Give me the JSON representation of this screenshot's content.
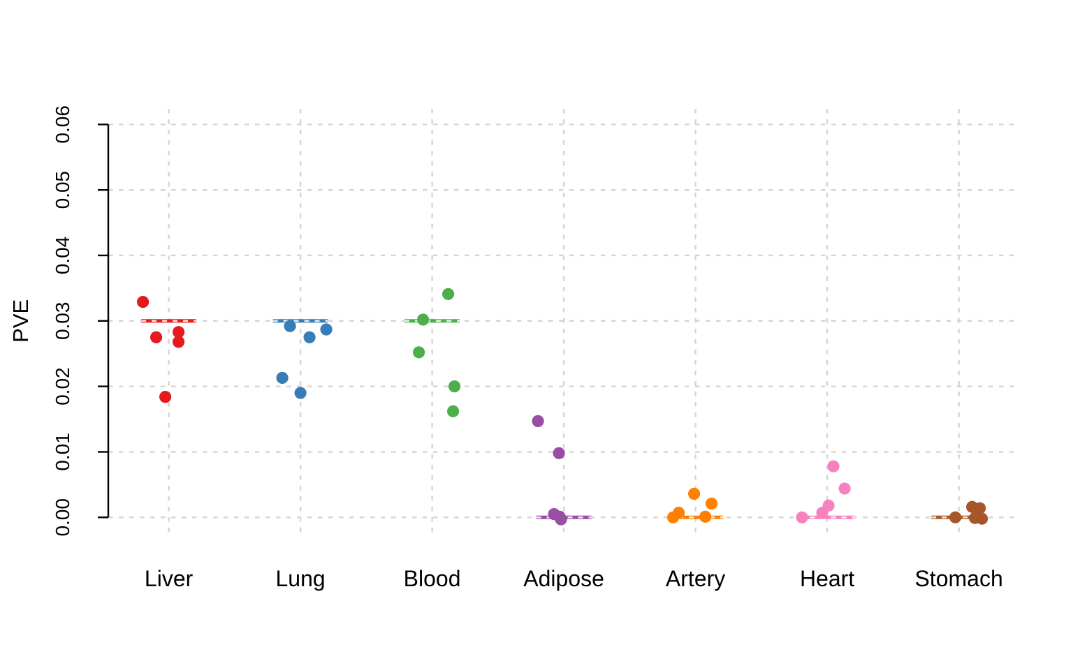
{
  "chart_data": {
    "type": "scatter",
    "subtype": "strip-chart-with-median-lines",
    "title": "",
    "xlabel": "",
    "ylabel": "PVE",
    "ylim": [
      0,
      0.06
    ],
    "yticks": [
      0.0,
      0.01,
      0.02,
      0.03,
      0.04,
      0.05,
      0.06
    ],
    "ytick_labels": [
      "0.00",
      "0.01",
      "0.02",
      "0.03",
      "0.04",
      "0.05",
      "0.06"
    ],
    "grid": "dashed gray gridlines at every y tick and every category",
    "legend": "none",
    "categories": [
      "Liver",
      "Lung",
      "Blood",
      "Adipose",
      "Artery",
      "Heart",
      "Stomach"
    ],
    "series": [
      {
        "name": "Liver",
        "color": "#E41A1C",
        "line_value": 0.03,
        "points": [
          {
            "pve": 0.0329,
            "dx": -37
          },
          {
            "pve": 0.0275,
            "dx": -18
          },
          {
            "pve": 0.0283,
            "dx": 14
          },
          {
            "pve": 0.0268,
            "dx": 14
          },
          {
            "pve": 0.0184,
            "dx": -5
          }
        ]
      },
      {
        "name": "Lung",
        "color": "#377EB8",
        "line_value": 0.03,
        "points": [
          {
            "pve": 0.0292,
            "dx": -15
          },
          {
            "pve": 0.0275,
            "dx": 13
          },
          {
            "pve": 0.0287,
            "dx": 37
          },
          {
            "pve": 0.0213,
            "dx": -26
          },
          {
            "pve": 0.019,
            "dx": 0
          }
        ]
      },
      {
        "name": "Blood",
        "color": "#4DAF4A",
        "line_value": 0.03,
        "points": [
          {
            "pve": 0.0341,
            "dx": 23
          },
          {
            "pve": 0.0302,
            "dx": -13
          },
          {
            "pve": 0.0252,
            "dx": -19
          },
          {
            "pve": 0.02,
            "dx": 32
          },
          {
            "pve": 0.0162,
            "dx": 30
          }
        ]
      },
      {
        "name": "Adipose",
        "color": "#984EA3",
        "line_value": 0.0,
        "points": [
          {
            "pve": 0.0147,
            "dx": -37
          },
          {
            "pve": 0.0098,
            "dx": -7
          },
          {
            "pve": 0.0005,
            "dx": -14
          },
          {
            "pve": 0.0001,
            "dx": -6
          },
          {
            "pve": -0.0003,
            "dx": -4
          }
        ]
      },
      {
        "name": "Artery",
        "color": "#FF7F00",
        "line_value": 0.0,
        "points": [
          {
            "pve": 0.0036,
            "dx": -2
          },
          {
            "pve": 0.0021,
            "dx": 23
          },
          {
            "pve": 0.0007,
            "dx": -24
          },
          {
            "pve": 0.0,
            "dx": -32
          },
          {
            "pve": 0.0001,
            "dx": 14
          }
        ]
      },
      {
        "name": "Heart",
        "color": "#F781BF",
        "line_value": 0.0,
        "points": [
          {
            "pve": 0.0078,
            "dx": 9
          },
          {
            "pve": 0.0044,
            "dx": 25
          },
          {
            "pve": 0.0018,
            "dx": 2
          },
          {
            "pve": 0.0007,
            "dx": -7
          },
          {
            "pve": 0.0,
            "dx": -36
          }
        ]
      },
      {
        "name": "Stomach",
        "color": "#A65628",
        "line_value": 0.0,
        "points": [
          {
            "pve": 0.0,
            "dx": -5
          },
          {
            "pve": 0.0016,
            "dx": 19
          },
          {
            "pve": 0.0014,
            "dx": 30
          },
          {
            "pve": -0.0001,
            "dx": 23
          },
          {
            "pve": -0.0002,
            "dx": 33
          }
        ]
      }
    ],
    "style": {
      "grid_color": "#D4D4D4",
      "axis_color": "#000000",
      "background": "#ffffff"
    }
  }
}
